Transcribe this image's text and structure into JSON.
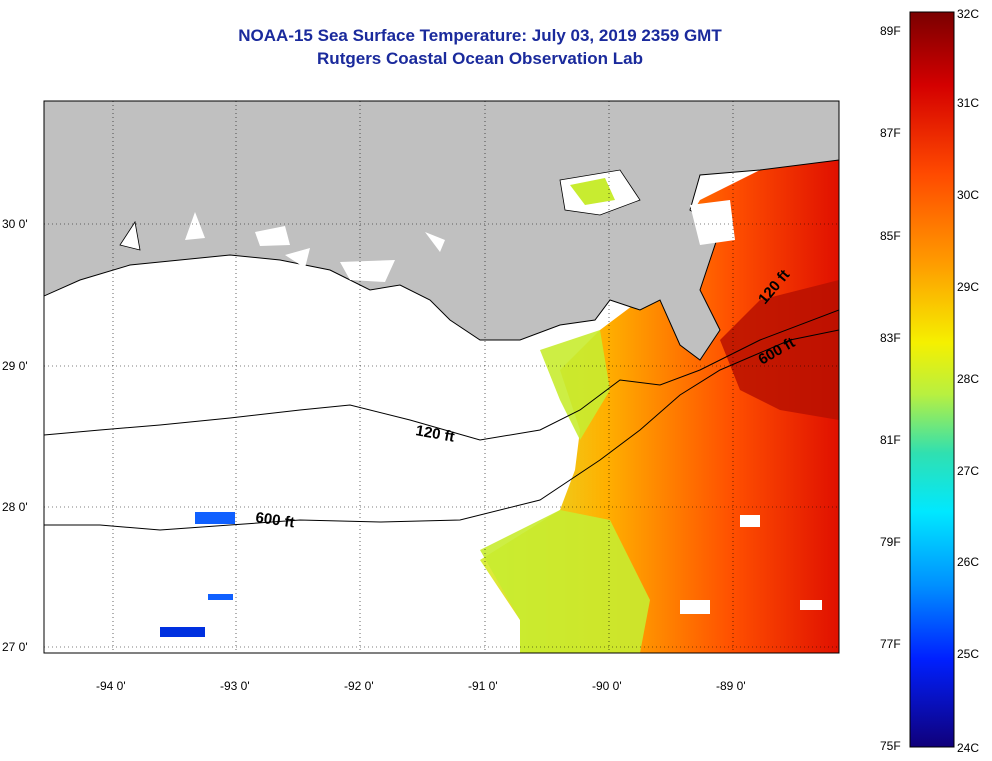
{
  "header": {
    "title": "NOAA-15 Sea Surface Temperature:  July 03, 2019 2359 GMT",
    "subtitle": "Rutgers Coastal Ocean Observation Lab"
  },
  "axes": {
    "lon_labels": [
      "-94 0'",
      "-93 0'",
      "-92 0'",
      "-91 0'",
      "-90 0'",
      "-89 0'"
    ],
    "lat_labels": [
      "30 0'",
      "29 0'",
      "28 0'",
      "27 0'"
    ]
  },
  "contours": {
    "shallow": "120 ft",
    "deep": "600 ft"
  },
  "colorbar": {
    "fahrenheit_labels": [
      "89F",
      "87F",
      "85F",
      "83F",
      "81F",
      "79F",
      "77F",
      "75F"
    ],
    "celsius_labels": [
      "32C",
      "31C",
      "30C",
      "29C",
      "28C",
      "27C",
      "26C",
      "25C",
      "24C"
    ],
    "min_c": 24,
    "max_c": 32
  },
  "colors": {
    "land": "#c0c0c0",
    "title": "#1a2a9c"
  }
}
